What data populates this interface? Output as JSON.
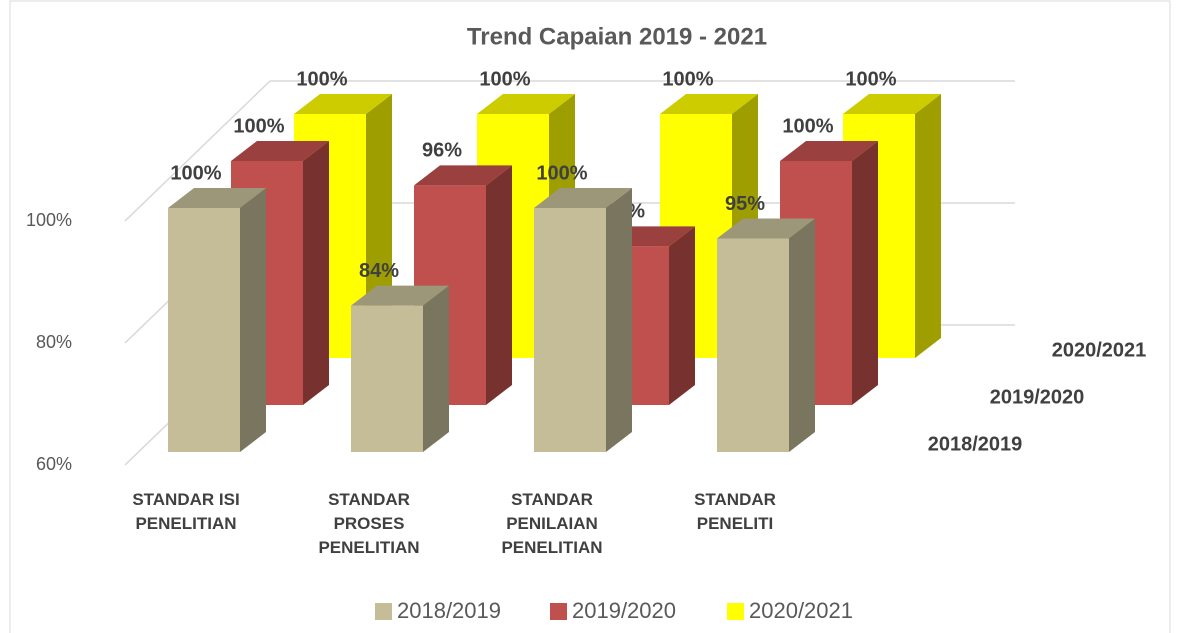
{
  "chart_data": {
    "type": "bar3d",
    "title": "Trend Capaian 2019 - 2021",
    "categories": [
      "STANDAR ISI PENELITIAN",
      "STANDAR PROSES PENELITIAN",
      "STANDAR PENILAIAN PENELITIAN",
      "STANDAR PENELITI"
    ],
    "series": [
      {
        "name": "2018/2019",
        "color": "#c4bd97",
        "values": [
          100,
          84,
          100,
          95
        ],
        "value_labels": [
          "100%",
          "84%",
          "100%",
          "95%"
        ]
      },
      {
        "name": "2019/2020",
        "color": "#c0504d",
        "values": [
          100,
          96,
          86,
          100
        ],
        "value_labels": [
          "100%",
          "96%",
          "86%",
          "100%"
        ]
      },
      {
        "name": "2020/2021",
        "color": "#ffff00",
        "values": [
          100,
          100,
          100,
          100
        ],
        "value_labels": [
          "100%",
          "100%",
          "100%",
          "100%"
        ]
      }
    ],
    "ylim": [
      60,
      100
    ],
    "yticks": [
      {
        "value": 60,
        "label": "60%"
      },
      {
        "value": 80,
        "label": "80%"
      },
      {
        "value": 100,
        "label": "100%"
      }
    ],
    "grid": true,
    "legend": "bottom"
  }
}
